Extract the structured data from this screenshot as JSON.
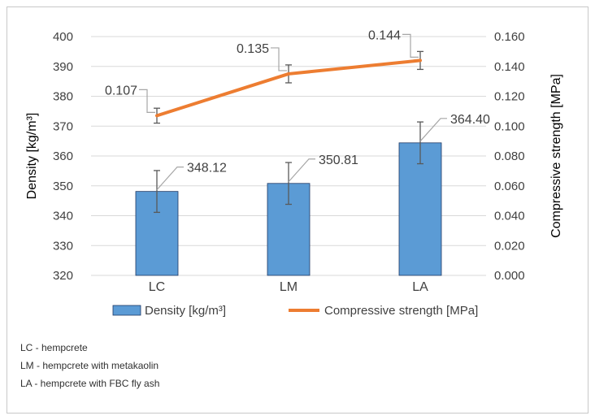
{
  "chart_data": {
    "type": "bar+line",
    "categories": [
      "LC",
      "LM",
      "LA"
    ],
    "series": [
      {
        "name": "Density [kg/m³]",
        "kind": "bar",
        "axis": "left",
        "values": [
          348.12,
          350.81,
          364.4
        ],
        "labels": [
          "348.12",
          "350.81",
          "364.40"
        ],
        "error": [
          7,
          7,
          7
        ],
        "color": "#5b9bd5",
        "edge_color": "#1f3864"
      },
      {
        "name": "Compressive strength [MPa]",
        "kind": "line",
        "axis": "right",
        "values": [
          0.107,
          0.135,
          0.144
        ],
        "labels": [
          "0.107",
          "0.135",
          "0.144"
        ],
        "error": [
          0.005,
          0.006,
          0.006
        ],
        "color": "#ed7d31"
      }
    ],
    "y_left": {
      "label": "Density [kg/m³]",
      "lim": [
        320,
        400
      ],
      "ticks": [
        320,
        330,
        340,
        350,
        360,
        370,
        380,
        390,
        400
      ],
      "tick_labels": [
        "320",
        "330",
        "340",
        "350",
        "360",
        "370",
        "380",
        "390",
        "400"
      ]
    },
    "y_right": {
      "label": "Compressive strength [MPa]",
      "lim": [
        0,
        0.16
      ],
      "ticks": [
        0,
        0.02,
        0.04,
        0.06,
        0.08,
        0.1,
        0.12,
        0.14,
        0.16
      ],
      "tick_labels": [
        "0.000",
        "0.020",
        "0.040",
        "0.060",
        "0.080",
        "0.100",
        "0.120",
        "0.140",
        "0.160"
      ]
    },
    "grid": true,
    "legend_position": "bottom"
  },
  "notes": [
    "LC - hempcrete",
    "LM - hempcrete with metakaolin",
    "LA - hempcrete with FBC fly ash"
  ]
}
